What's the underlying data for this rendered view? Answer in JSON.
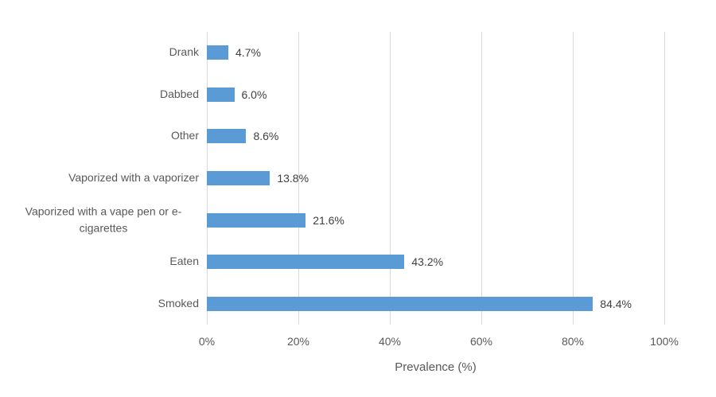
{
  "chart_data": {
    "type": "bar",
    "orientation": "horizontal",
    "title": "",
    "categories": [
      "Drank",
      "Dabbed",
      "Other",
      "Vaporized with a vaporizer",
      "Vaporized with a vape pen or e-cigarettes",
      "Eaten",
      "Smoked"
    ],
    "values": [
      4.7,
      6.0,
      8.6,
      13.8,
      21.6,
      43.2,
      84.4
    ],
    "data_labels": [
      "4.7%",
      "6.0%",
      "8.6%",
      "13.8%",
      "21.6%",
      "43.2%",
      "84.4%"
    ],
    "xlabel": "Prevalence (%)",
    "ylabel": "",
    "x_ticks": [
      "0%",
      "20%",
      "40%",
      "60%",
      "80%",
      "100%"
    ],
    "x_tick_values": [
      0,
      20,
      40,
      60,
      80,
      100
    ],
    "xlim": [
      0,
      100
    ],
    "grid": true,
    "legend": false,
    "bar_color": "#5b9bd5",
    "gridline_color": "#d9d9d9",
    "label_color": "#404040",
    "axis_text_color": "#595959"
  }
}
